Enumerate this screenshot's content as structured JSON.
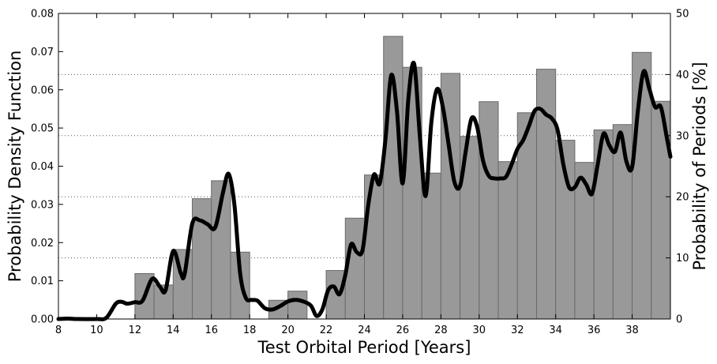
{
  "chart_data": {
    "type": "bar",
    "xlabel": "Test Orbital Period [Years]",
    "ylabel": "Probability Density Function",
    "y2label": "Probability of Periods [%]",
    "xlim": [
      8,
      40
    ],
    "ylim": [
      0,
      0.08
    ],
    "y2lim": [
      0,
      50
    ],
    "xticks": [
      8,
      10,
      12,
      14,
      16,
      18,
      20,
      22,
      24,
      26,
      28,
      30,
      32,
      34,
      36,
      38
    ],
    "yticks": [
      "0.00",
      "0.01",
      "0.02",
      "0.03",
      "0.04",
      "0.05",
      "0.06",
      "0.07",
      "0.08"
    ],
    "y2ticks": [
      0,
      10,
      20,
      30,
      40,
      50
    ],
    "grid": "horizontal dotted at right-axis ticks",
    "bin_width": 1,
    "histogram": {
      "bin_edges": [
        8,
        9,
        10,
        11,
        12,
        13,
        14,
        15,
        16,
        17,
        18,
        19,
        20,
        21,
        22,
        23,
        24,
        25,
        26,
        27,
        28,
        29,
        30,
        31,
        32,
        33,
        34,
        35,
        36,
        37,
        38,
        39,
        40
      ],
      "values": [
        0,
        0,
        0,
        0,
        0.0119,
        0.0089,
        0.0182,
        0.0315,
        0.0362,
        0.0175,
        0,
        0.0049,
        0.0073,
        0,
        0.0127,
        0.0264,
        0.0377,
        0.074,
        0.0659,
        0.0382,
        0.0643,
        0.0478,
        0.0569,
        0.0412,
        0.054,
        0.0654,
        0.0468,
        0.041,
        0.0495,
        0.0509,
        0.0698,
        0.057
      ]
    },
    "pdf_curve": {
      "x": [
        8,
        8.5,
        9,
        10,
        10.5,
        11,
        11.3,
        11.6,
        12,
        12.4,
        12.9,
        13.3,
        13.6,
        14,
        14.4,
        14.6,
        15,
        15.4,
        15.8,
        16.2,
        16.6,
        16.9,
        17.2,
        17.5,
        17.8,
        18.1,
        18.4,
        18.8,
        19.2,
        19.6,
        20,
        20.4,
        20.8,
        21.2,
        21.5,
        21.8,
        22.1,
        22.4,
        22.7,
        23,
        23.3,
        23.6,
        23.9,
        24.2,
        24.5,
        24.8,
        25.1,
        25.4,
        25.7,
        26,
        26.3,
        26.6,
        26.9,
        27.2,
        27.5,
        27.8,
        28.1,
        28.4,
        28.7,
        29,
        29.3,
        29.6,
        29.9,
        30.2,
        30.5,
        30.8,
        31.1,
        31.4,
        31.7,
        32,
        32.3,
        32.6,
        32.9,
        33.2,
        33.5,
        33.8,
        34.1,
        34.4,
        34.7,
        35,
        35.3,
        35.6,
        35.9,
        36.2,
        36.5,
        36.8,
        37.1,
        37.4,
        37.7,
        38,
        38.3,
        38.6,
        38.9,
        39.2,
        39.5,
        39.8,
        40
      ],
      "y": [
        0,
        0.0001,
        0,
        0,
        0.0003,
        0.004,
        0.0045,
        0.004,
        0.0044,
        0.0048,
        0.0105,
        0.0085,
        0.0075,
        0.0178,
        0.012,
        0.0118,
        0.025,
        0.0258,
        0.0248,
        0.024,
        0.033,
        0.038,
        0.03,
        0.012,
        0.0055,
        0.005,
        0.0048,
        0.0028,
        0.0025,
        0.0034,
        0.0046,
        0.005,
        0.0046,
        0.0035,
        0.0008,
        0.0025,
        0.0075,
        0.0085,
        0.0065,
        0.0115,
        0.0195,
        0.0175,
        0.018,
        0.0298,
        0.0378,
        0.0355,
        0.047,
        0.0638,
        0.0545,
        0.0355,
        0.0578,
        0.0668,
        0.0478,
        0.0322,
        0.0515,
        0.0602,
        0.0555,
        0.0458,
        0.036,
        0.0348,
        0.044,
        0.0525,
        0.0502,
        0.0415,
        0.0375,
        0.0368,
        0.0368,
        0.0372,
        0.0405,
        0.0445,
        0.0468,
        0.0505,
        0.0545,
        0.055,
        0.0535,
        0.0525,
        0.0495,
        0.0405,
        0.0345,
        0.0345,
        0.037,
        0.0352,
        0.0328,
        0.0405,
        0.0485,
        0.0455,
        0.0438,
        0.0488,
        0.0412,
        0.0398,
        0.0545,
        0.0648,
        0.0602,
        0.0555,
        0.0555,
        0.0478,
        0.0425
      ]
    }
  }
}
